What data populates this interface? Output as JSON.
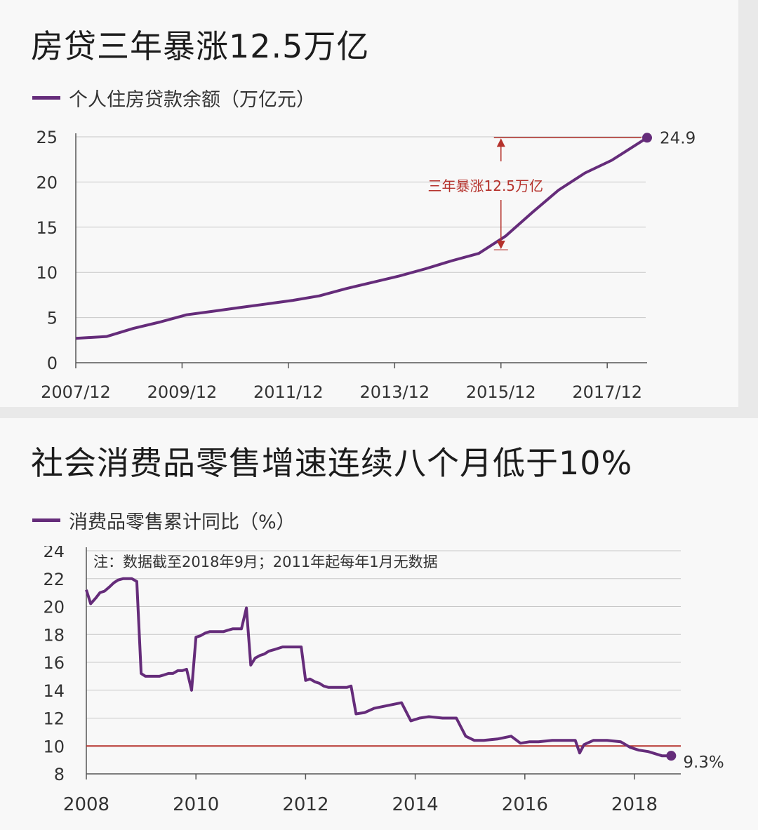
{
  "colors": {
    "series": "#652c7a",
    "annotation": "#b5322c",
    "grid": "#c8c8c8",
    "axis": "#555555"
  },
  "chart_data": [
    {
      "type": "line",
      "title": "房贷三年暴涨12.5万亿",
      "legend": "个人住房贷款余额（万亿元）",
      "legend_position": "top-left",
      "grid": "horizontal",
      "x_ticks": [
        "2007/12",
        "2009/12",
        "2011/12",
        "2013/12",
        "2015/12",
        "2017/12"
      ],
      "y_ticks": [
        0,
        5,
        10,
        15,
        20,
        25
      ],
      "xlim": [
        2007.917,
        2018.667
      ],
      "ylim": [
        0,
        25
      ],
      "series": [
        {
          "x": [
            2007.917,
            2008.5,
            2009.0,
            2009.5,
            2010.0,
            2010.5,
            2011.0,
            2011.5,
            2012.0,
            2012.5,
            2013.0,
            2013.5,
            2014.0,
            2014.5,
            2015.0,
            2015.5,
            2016.0,
            2016.5,
            2017.0,
            2017.5,
            2018.0,
            2018.667
          ],
          "y": [
            2.7,
            2.9,
            3.8,
            4.5,
            5.3,
            5.7,
            6.1,
            6.5,
            6.9,
            7.4,
            8.2,
            8.9,
            9.6,
            10.4,
            11.3,
            12.1,
            14.0,
            16.6,
            19.1,
            21.0,
            22.4,
            24.9
          ]
        }
      ],
      "end_label": "24.9",
      "annotation": {
        "text": "三年暴涨12.5万亿",
        "from": [
          2015.917,
          12.5
        ],
        "to": [
          2018.667,
          24.9
        ]
      }
    },
    {
      "type": "line",
      "title": "社会消费品零售增速连续八个月低于10%",
      "legend": "消费品零售累计同比（%）",
      "legend_position": "top-left",
      "note": "注：数据截至2018年9月；2011年起每年1月无数据",
      "grid": "horizontal",
      "x_ticks": [
        "2008",
        "2010",
        "2012",
        "2014",
        "2016",
        "2018"
      ],
      "y_ticks": [
        8,
        10,
        12,
        14,
        16,
        18,
        20,
        22,
        24
      ],
      "xlim": [
        2008.0,
        2018.67
      ],
      "ylim": [
        8,
        24
      ],
      "reference_line": 10,
      "series": [
        {
          "x": [
            2008.0,
            2008.08,
            2008.17,
            2008.25,
            2008.33,
            2008.42,
            2008.5,
            2008.58,
            2008.67,
            2008.75,
            2008.83,
            2008.92,
            2009.0,
            2009.08,
            2009.17,
            2009.25,
            2009.33,
            2009.42,
            2009.5,
            2009.58,
            2009.67,
            2009.75,
            2009.83,
            2009.92,
            2010.0,
            2010.08,
            2010.17,
            2010.25,
            2010.33,
            2010.42,
            2010.5,
            2010.58,
            2010.67,
            2010.75,
            2010.83,
            2010.92,
            2011.0,
            2011.08,
            2011.17,
            2011.25,
            2011.33,
            2011.42,
            2011.5,
            2011.58,
            2011.67,
            2011.75,
            2011.83,
            2011.92,
            2012.0,
            2012.08,
            2012.17,
            2012.25,
            2012.33,
            2012.42,
            2012.5,
            2012.58,
            2012.67,
            2012.75,
            2012.83,
            2012.92,
            2013.08,
            2013.25,
            2013.5,
            2013.75,
            2013.92,
            2014.08,
            2014.25,
            2014.5,
            2014.75,
            2014.92,
            2015.08,
            2015.25,
            2015.5,
            2015.75,
            2015.92,
            2016.08,
            2016.25,
            2016.5,
            2016.75,
            2016.92,
            2017.0,
            2017.08,
            2017.25,
            2017.5,
            2017.75,
            2017.92,
            2018.08,
            2018.25,
            2018.5,
            2018.67
          ],
          "y": [
            21.2,
            20.2,
            20.6,
            21.0,
            21.1,
            21.4,
            21.7,
            21.9,
            22.0,
            22.0,
            22.0,
            21.8,
            15.2,
            15.0,
            15.0,
            15.0,
            15.0,
            15.1,
            15.2,
            15.2,
            15.4,
            15.4,
            15.5,
            14.0,
            17.8,
            17.9,
            18.1,
            18.2,
            18.2,
            18.2,
            18.2,
            18.3,
            18.4,
            18.4,
            18.4,
            19.9,
            15.8,
            16.3,
            16.5,
            16.6,
            16.8,
            16.9,
            17.0,
            17.1,
            17.1,
            17.1,
            17.1,
            17.1,
            14.7,
            14.8,
            14.6,
            14.5,
            14.3,
            14.2,
            14.2,
            14.2,
            14.2,
            14.2,
            14.3,
            12.3,
            12.4,
            12.7,
            12.9,
            13.1,
            11.8,
            12.0,
            12.1,
            12.0,
            12.0,
            10.7,
            10.4,
            10.4,
            10.5,
            10.7,
            10.2,
            10.3,
            10.3,
            10.4,
            10.4,
            10.4,
            9.5,
            10.1,
            10.4,
            10.4,
            10.3,
            9.9,
            9.7,
            9.6,
            9.3,
            9.3
          ]
        }
      ],
      "end_label": "9.3%"
    }
  ]
}
